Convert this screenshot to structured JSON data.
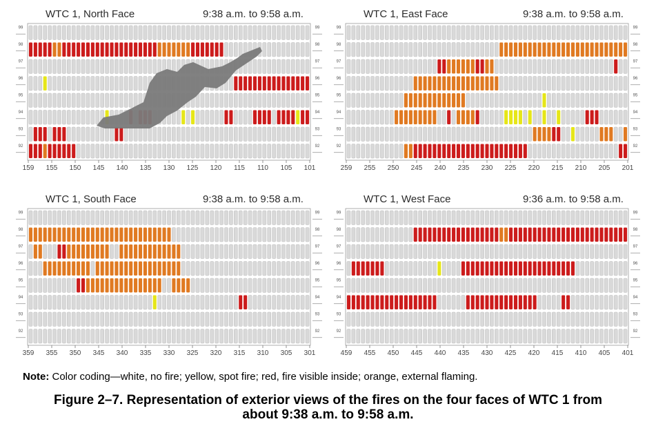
{
  "legend": {
    "colors": {
      "none": "#d9d9d9",
      "spot": "#e6e619",
      "inside": "#cc1c1c",
      "external": "#e07a22",
      "smoke": "#7a7a7a"
    }
  },
  "panels": [
    {
      "id": "north",
      "title": "WTC 1, North Face",
      "time": "9:38 a.m. to 9:58 a.m.",
      "floors": [
        "99",
        "98",
        "97",
        "96",
        "95",
        "94",
        "93",
        "92"
      ],
      "columns": 59,
      "x_labels": [
        "159",
        "155",
        "150",
        "145",
        "140",
        "135",
        "130",
        "125",
        "120",
        "115",
        "110",
        "105",
        "101"
      ],
      "fires": [
        {
          "floor": "98",
          "from": 0,
          "to": 4,
          "type": "inside"
        },
        {
          "floor": "98",
          "from": 5,
          "to": 6,
          "type": "external"
        },
        {
          "floor": "98",
          "from": 7,
          "to": 26,
          "type": "inside"
        },
        {
          "floor": "98",
          "from": 27,
          "to": 33,
          "type": "external"
        },
        {
          "floor": "98",
          "from": 34,
          "to": 40,
          "type": "inside"
        },
        {
          "floor": "96",
          "from": 3,
          "to": 3,
          "type": "spot"
        },
        {
          "floor": "96",
          "from": 43,
          "to": 58,
          "type": "inside"
        },
        {
          "floor": "94",
          "from": 16,
          "to": 16,
          "type": "spot"
        },
        {
          "floor": "94",
          "from": 21,
          "to": 21,
          "type": "inside"
        },
        {
          "floor": "94",
          "from": 23,
          "to": 25,
          "type": "inside"
        },
        {
          "floor": "94",
          "from": 32,
          "to": 32,
          "type": "spot"
        },
        {
          "floor": "94",
          "from": 34,
          "to": 34,
          "type": "spot"
        },
        {
          "floor": "94",
          "from": 41,
          "to": 42,
          "type": "inside"
        },
        {
          "floor": "94",
          "from": 47,
          "to": 50,
          "type": "inside"
        },
        {
          "floor": "94",
          "from": 52,
          "to": 55,
          "type": "inside"
        },
        {
          "floor": "94",
          "from": 56,
          "to": 56,
          "type": "spot"
        },
        {
          "floor": "94",
          "from": 57,
          "to": 58,
          "type": "inside"
        },
        {
          "floor": "93",
          "from": 1,
          "to": 3,
          "type": "inside"
        },
        {
          "floor": "93",
          "from": 5,
          "to": 7,
          "type": "inside"
        },
        {
          "floor": "93",
          "from": 18,
          "to": 19,
          "type": "inside"
        },
        {
          "floor": "92",
          "from": 0,
          "to": 2,
          "type": "inside"
        },
        {
          "floor": "92",
          "from": 3,
          "to": 3,
          "type": "external"
        },
        {
          "floor": "92",
          "from": 4,
          "to": 9,
          "type": "inside"
        }
      ]
    },
    {
      "id": "east",
      "title": "WTC 1, East Face",
      "time": "9:38 a.m. to 9:58 a.m.",
      "floors": [
        "99",
        "98",
        "97",
        "96",
        "95",
        "94",
        "93",
        "92"
      ],
      "columns": 59,
      "x_labels": [
        "259",
        "255",
        "250",
        "245",
        "240",
        "235",
        "230",
        "225",
        "220",
        "215",
        "210",
        "205",
        "201"
      ],
      "fires": [
        {
          "floor": "98",
          "from": 32,
          "to": 58,
          "type": "external"
        },
        {
          "floor": "97",
          "from": 19,
          "to": 20,
          "type": "inside"
        },
        {
          "floor": "97",
          "from": 21,
          "to": 26,
          "type": "external"
        },
        {
          "floor": "97",
          "from": 27,
          "to": 28,
          "type": "inside"
        },
        {
          "floor": "97",
          "from": 29,
          "to": 30,
          "type": "external"
        },
        {
          "floor": "97",
          "from": 56,
          "to": 56,
          "type": "inside"
        },
        {
          "floor": "96",
          "from": 14,
          "to": 31,
          "type": "external"
        },
        {
          "floor": "95",
          "from": 12,
          "to": 24,
          "type": "external"
        },
        {
          "floor": "95",
          "from": 41,
          "to": 41,
          "type": "spot"
        },
        {
          "floor": "94",
          "from": 10,
          "to": 18,
          "type": "external"
        },
        {
          "floor": "94",
          "from": 21,
          "to": 21,
          "type": "inside"
        },
        {
          "floor": "94",
          "from": 23,
          "to": 26,
          "type": "external"
        },
        {
          "floor": "94",
          "from": 27,
          "to": 27,
          "type": "inside"
        },
        {
          "floor": "94",
          "from": 33,
          "to": 36,
          "type": "spot"
        },
        {
          "floor": "94",
          "from": 38,
          "to": 38,
          "type": "spot"
        },
        {
          "floor": "94",
          "from": 41,
          "to": 41,
          "type": "spot"
        },
        {
          "floor": "94",
          "from": 44,
          "to": 44,
          "type": "spot"
        },
        {
          "floor": "94",
          "from": 50,
          "to": 52,
          "type": "inside"
        },
        {
          "floor": "93",
          "from": 39,
          "to": 42,
          "type": "external"
        },
        {
          "floor": "93",
          "from": 43,
          "to": 44,
          "type": "inside"
        },
        {
          "floor": "93",
          "from": 47,
          "to": 47,
          "type": "spot"
        },
        {
          "floor": "93",
          "from": 53,
          "to": 55,
          "type": "external"
        },
        {
          "floor": "93",
          "from": 58,
          "to": 58,
          "type": "external"
        },
        {
          "floor": "92",
          "from": 12,
          "to": 13,
          "type": "external"
        },
        {
          "floor": "92",
          "from": 14,
          "to": 37,
          "type": "inside"
        },
        {
          "floor": "92",
          "from": 57,
          "to": 58,
          "type": "inside"
        }
      ]
    },
    {
      "id": "south",
      "title": "WTC 1, South Face",
      "time": "9:38 a.m. to 9:58 a.m.",
      "floors": [
        "99",
        "98",
        "97",
        "96",
        "95",
        "94",
        "93",
        "92"
      ],
      "columns": 59,
      "x_labels": [
        "359",
        "355",
        "350",
        "345",
        "340",
        "335",
        "330",
        "325",
        "320",
        "315",
        "310",
        "305",
        "301"
      ],
      "fires": [
        {
          "floor": "98",
          "from": 0,
          "to": 29,
          "type": "external"
        },
        {
          "floor": "97",
          "from": 1,
          "to": 2,
          "type": "external"
        },
        {
          "floor": "97",
          "from": 6,
          "to": 7,
          "type": "inside"
        },
        {
          "floor": "97",
          "from": 8,
          "to": 16,
          "type": "external"
        },
        {
          "floor": "97",
          "from": 19,
          "to": 31,
          "type": "external"
        },
        {
          "floor": "96",
          "from": 3,
          "to": 12,
          "type": "external"
        },
        {
          "floor": "96",
          "from": 14,
          "to": 31,
          "type": "external"
        },
        {
          "floor": "95",
          "from": 10,
          "to": 11,
          "type": "inside"
        },
        {
          "floor": "95",
          "from": 12,
          "to": 27,
          "type": "external"
        },
        {
          "floor": "95",
          "from": 30,
          "to": 33,
          "type": "external"
        },
        {
          "floor": "94",
          "from": 26,
          "to": 26,
          "type": "spot"
        },
        {
          "floor": "94",
          "from": 44,
          "to": 45,
          "type": "inside"
        }
      ]
    },
    {
      "id": "west",
      "title": "WTC 1, West Face",
      "time": "9:36 a.m. to 9:58 a.m.",
      "floors": [
        "99",
        "98",
        "97",
        "96",
        "95",
        "94",
        "93",
        "92"
      ],
      "columns": 59,
      "x_labels": [
        "459",
        "455",
        "450",
        "445",
        "440",
        "435",
        "430",
        "425",
        "420",
        "415",
        "410",
        "405",
        "401"
      ],
      "fires": [
        {
          "floor": "98",
          "from": 14,
          "to": 31,
          "type": "inside"
        },
        {
          "floor": "98",
          "from": 32,
          "to": 33,
          "type": "external"
        },
        {
          "floor": "98",
          "from": 34,
          "to": 58,
          "type": "inside"
        },
        {
          "floor": "96",
          "from": 1,
          "to": 7,
          "type": "inside"
        },
        {
          "floor": "96",
          "from": 19,
          "to": 19,
          "type": "spot"
        },
        {
          "floor": "96",
          "from": 24,
          "to": 47,
          "type": "inside"
        },
        {
          "floor": "94",
          "from": 0,
          "to": 18,
          "type": "inside"
        },
        {
          "floor": "94",
          "from": 25,
          "to": 39,
          "type": "inside"
        },
        {
          "floor": "94",
          "from": 45,
          "to": 46,
          "type": "inside"
        }
      ]
    }
  ],
  "note": {
    "label": "Note:",
    "text": " Color coding—white, no fire; yellow, spot fire; red, fire visible inside; orange, external flaming."
  },
  "caption": {
    "line1": "Figure 2–7.  Representation of exterior views of the fires on the four faces of WTC 1 from",
    "line2": "about 9:38 a.m. to 9:58 a.m."
  }
}
